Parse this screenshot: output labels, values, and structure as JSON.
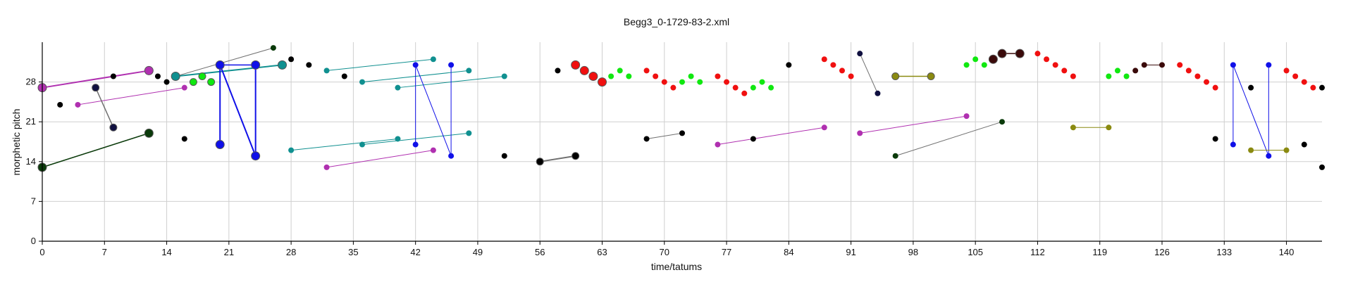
{
  "chart_data": {
    "type": "scatter",
    "title": "Begg3_0-1729-83-2.xml",
    "xlabel": "time/tatums",
    "ylabel": "morphetic pitch",
    "xlim": [
      0,
      144
    ],
    "ylim": [
      0,
      35
    ],
    "xticks": [
      0,
      7,
      14,
      21,
      28,
      35,
      42,
      49,
      56,
      63,
      70,
      77,
      84,
      91,
      98,
      105,
      112,
      119,
      126,
      133,
      140
    ],
    "yticks": [
      0,
      7,
      14,
      21,
      28
    ],
    "grid": true,
    "colors": {
      "black": "#000000",
      "purple": "#b030b0",
      "teal": "#109090",
      "blue": "#1010e8",
      "green": "#10e810",
      "red": "#f01010",
      "olive": "#8a8a10",
      "darkgreen": "#0a3a0a",
      "darkred": "#3a0a0a",
      "navy": "#101040",
      "gray": "#707070"
    },
    "points": [
      {
        "x": 0,
        "y": 27,
        "c": "purple",
        "s": 6
      },
      {
        "x": 2,
        "y": 24,
        "c": "black",
        "s": 4
      },
      {
        "x": 4,
        "y": 24,
        "c": "purple",
        "s": 4
      },
      {
        "x": 6,
        "y": 27,
        "c": "navy",
        "s": 5
      },
      {
        "x": 8,
        "y": 20,
        "c": "navy",
        "s": 5
      },
      {
        "x": 8,
        "y": 29,
        "c": "black",
        "s": 4
      },
      {
        "x": 12,
        "y": 30,
        "c": "purple",
        "s": 6
      },
      {
        "x": 12,
        "y": 19,
        "c": "darkgreen",
        "s": 6
      },
      {
        "x": 0,
        "y": 13,
        "c": "darkgreen",
        "s": 6
      },
      {
        "x": 13,
        "y": 29,
        "c": "black",
        "s": 4
      },
      {
        "x": 14,
        "y": 28,
        "c": "black",
        "s": 4
      },
      {
        "x": 16,
        "y": 27,
        "c": "purple",
        "s": 4
      },
      {
        "x": 16,
        "y": 18,
        "c": "black",
        "s": 4
      },
      {
        "x": 15,
        "y": 29,
        "c": "teal",
        "s": 6
      },
      {
        "x": 17,
        "y": 28,
        "c": "green",
        "s": 5
      },
      {
        "x": 18,
        "y": 29,
        "c": "green",
        "s": 5
      },
      {
        "x": 19,
        "y": 28,
        "c": "green",
        "s": 5
      },
      {
        "x": 20,
        "y": 31,
        "c": "blue",
        "s": 6
      },
      {
        "x": 20,
        "y": 17,
        "c": "blue",
        "s": 6
      },
      {
        "x": 24,
        "y": 31,
        "c": "blue",
        "s": 6
      },
      {
        "x": 24,
        "y": 15,
        "c": "blue",
        "s": 6
      },
      {
        "x": 26,
        "y": 34,
        "c": "darkgreen",
        "s": 4
      },
      {
        "x": 27,
        "y": 31,
        "c": "teal",
        "s": 6
      },
      {
        "x": 28,
        "y": 32,
        "c": "black",
        "s": 4
      },
      {
        "x": 30,
        "y": 31,
        "c": "black",
        "s": 4
      },
      {
        "x": 28,
        "y": 16,
        "c": "teal",
        "s": 4
      },
      {
        "x": 32,
        "y": 30,
        "c": "teal",
        "s": 4
      },
      {
        "x": 32,
        "y": 13,
        "c": "purple",
        "s": 4
      },
      {
        "x": 34,
        "y": 29,
        "c": "black",
        "s": 4
      },
      {
        "x": 36,
        "y": 28,
        "c": "teal",
        "s": 4
      },
      {
        "x": 36,
        "y": 17,
        "c": "teal",
        "s": 4
      },
      {
        "x": 40,
        "y": 27,
        "c": "teal",
        "s": 4
      },
      {
        "x": 40,
        "y": 18,
        "c": "teal",
        "s": 4
      },
      {
        "x": 42,
        "y": 31,
        "c": "blue",
        "s": 4
      },
      {
        "x": 42,
        "y": 17,
        "c": "blue",
        "s": 4
      },
      {
        "x": 44,
        "y": 32,
        "c": "teal",
        "s": 4
      },
      {
        "x": 44,
        "y": 16,
        "c": "purple",
        "s": 4
      },
      {
        "x": 46,
        "y": 31,
        "c": "blue",
        "s": 4
      },
      {
        "x": 46,
        "y": 15,
        "c": "blue",
        "s": 4
      },
      {
        "x": 48,
        "y": 30,
        "c": "teal",
        "s": 4
      },
      {
        "x": 48,
        "y": 19,
        "c": "teal",
        "s": 4
      },
      {
        "x": 52,
        "y": 29,
        "c": "teal",
        "s": 4
      },
      {
        "x": 52,
        "y": 15,
        "c": "black",
        "s": 4
      },
      {
        "x": 56,
        "y": 14,
        "c": "black",
        "s": 5
      },
      {
        "x": 58,
        "y": 30,
        "c": "black",
        "s": 4
      },
      {
        "x": 60,
        "y": 15,
        "c": "black",
        "s": 5
      },
      {
        "x": 60,
        "y": 31,
        "c": "red",
        "s": 6
      },
      {
        "x": 61,
        "y": 30,
        "c": "red",
        "s": 6
      },
      {
        "x": 62,
        "y": 29,
        "c": "red",
        "s": 6
      },
      {
        "x": 63,
        "y": 28,
        "c": "red",
        "s": 6
      },
      {
        "x": 64,
        "y": 29,
        "c": "green",
        "s": 4
      },
      {
        "x": 65,
        "y": 30,
        "c": "green",
        "s": 4
      },
      {
        "x": 66,
        "y": 29,
        "c": "green",
        "s": 4
      },
      {
        "x": 68,
        "y": 30,
        "c": "red",
        "s": 4
      },
      {
        "x": 69,
        "y": 29,
        "c": "red",
        "s": 4
      },
      {
        "x": 70,
        "y": 28,
        "c": "red",
        "s": 4
      },
      {
        "x": 71,
        "y": 27,
        "c": "red",
        "s": 4
      },
      {
        "x": 72,
        "y": 28,
        "c": "green",
        "s": 4
      },
      {
        "x": 73,
        "y": 29,
        "c": "green",
        "s": 4
      },
      {
        "x": 74,
        "y": 28,
        "c": "green",
        "s": 4
      },
      {
        "x": 68,
        "y": 18,
        "c": "black",
        "s": 4
      },
      {
        "x": 72,
        "y": 19,
        "c": "black",
        "s": 4
      },
      {
        "x": 76,
        "y": 29,
        "c": "red",
        "s": 4
      },
      {
        "x": 77,
        "y": 28,
        "c": "red",
        "s": 4
      },
      {
        "x": 78,
        "y": 27,
        "c": "red",
        "s": 4
      },
      {
        "x": 79,
        "y": 26,
        "c": "red",
        "s": 4
      },
      {
        "x": 80,
        "y": 27,
        "c": "green",
        "s": 4
      },
      {
        "x": 81,
        "y": 28,
        "c": "green",
        "s": 4
      },
      {
        "x": 82,
        "y": 27,
        "c": "green",
        "s": 4
      },
      {
        "x": 76,
        "y": 17,
        "c": "purple",
        "s": 4
      },
      {
        "x": 80,
        "y": 18,
        "c": "black",
        "s": 4
      },
      {
        "x": 84,
        "y": 31,
        "c": "black",
        "s": 4
      },
      {
        "x": 88,
        "y": 32,
        "c": "red",
        "s": 4
      },
      {
        "x": 89,
        "y": 31,
        "c": "red",
        "s": 4
      },
      {
        "x": 90,
        "y": 30,
        "c": "red",
        "s": 4
      },
      {
        "x": 91,
        "y": 29,
        "c": "red",
        "s": 4
      },
      {
        "x": 88,
        "y": 20,
        "c": "purple",
        "s": 4
      },
      {
        "x": 92,
        "y": 33,
        "c": "navy",
        "s": 4
      },
      {
        "x": 94,
        "y": 26,
        "c": "navy",
        "s": 4
      },
      {
        "x": 92,
        "y": 19,
        "c": "purple",
        "s": 4
      },
      {
        "x": 96,
        "y": 29,
        "c": "olive",
        "s": 5
      },
      {
        "x": 100,
        "y": 29,
        "c": "olive",
        "s": 5
      },
      {
        "x": 96,
        "y": 15,
        "c": "darkgreen",
        "s": 4
      },
      {
        "x": 104,
        "y": 22,
        "c": "purple",
        "s": 4
      },
      {
        "x": 104,
        "y": 31,
        "c": "green",
        "s": 4
      },
      {
        "x": 105,
        "y": 32,
        "c": "green",
        "s": 4
      },
      {
        "x": 106,
        "y": 31,
        "c": "green",
        "s": 4
      },
      {
        "x": 107,
        "y": 32,
        "c": "darkred",
        "s": 6
      },
      {
        "x": 108,
        "y": 33,
        "c": "darkred",
        "s": 6
      },
      {
        "x": 110,
        "y": 33,
        "c": "darkred",
        "s": 6
      },
      {
        "x": 108,
        "y": 21,
        "c": "darkgreen",
        "s": 4
      },
      {
        "x": 112,
        "y": 33,
        "c": "red",
        "s": 4
      },
      {
        "x": 113,
        "y": 32,
        "c": "red",
        "s": 4
      },
      {
        "x": 114,
        "y": 31,
        "c": "red",
        "s": 4
      },
      {
        "x": 115,
        "y": 30,
        "c": "red",
        "s": 4
      },
      {
        "x": 116,
        "y": 29,
        "c": "red",
        "s": 4
      },
      {
        "x": 116,
        "y": 20,
        "c": "olive",
        "s": 4
      },
      {
        "x": 120,
        "y": 20,
        "c": "olive",
        "s": 4
      },
      {
        "x": 120,
        "y": 29,
        "c": "green",
        "s": 4
      },
      {
        "x": 121,
        "y": 30,
        "c": "green",
        "s": 4
      },
      {
        "x": 122,
        "y": 29,
        "c": "green",
        "s": 4
      },
      {
        "x": 123,
        "y": 30,
        "c": "darkred",
        "s": 4
      },
      {
        "x": 124,
        "y": 31,
        "c": "darkred",
        "s": 4
      },
      {
        "x": 126,
        "y": 31,
        "c": "darkred",
        "s": 4
      },
      {
        "x": 128,
        "y": 31,
        "c": "red",
        "s": 4
      },
      {
        "x": 129,
        "y": 30,
        "c": "red",
        "s": 4
      },
      {
        "x": 130,
        "y": 29,
        "c": "red",
        "s": 4
      },
      {
        "x": 131,
        "y": 28,
        "c": "red",
        "s": 4
      },
      {
        "x": 132,
        "y": 27,
        "c": "red",
        "s": 4
      },
      {
        "x": 132,
        "y": 18,
        "c": "black",
        "s": 4
      },
      {
        "x": 134,
        "y": 31,
        "c": "blue",
        "s": 4
      },
      {
        "x": 134,
        "y": 17,
        "c": "blue",
        "s": 4
      },
      {
        "x": 136,
        "y": 27,
        "c": "black",
        "s": 4
      },
      {
        "x": 136,
        "y": 16,
        "c": "olive",
        "s": 4
      },
      {
        "x": 138,
        "y": 31,
        "c": "blue",
        "s": 4
      },
      {
        "x": 138,
        "y": 15,
        "c": "blue",
        "s": 4
      },
      {
        "x": 140,
        "y": 16,
        "c": "olive",
        "s": 4
      },
      {
        "x": 140,
        "y": 30,
        "c": "red",
        "s": 4
      },
      {
        "x": 141,
        "y": 29,
        "c": "red",
        "s": 4
      },
      {
        "x": 142,
        "y": 28,
        "c": "red",
        "s": 4
      },
      {
        "x": 143,
        "y": 27,
        "c": "red",
        "s": 4
      },
      {
        "x": 142,
        "y": 17,
        "c": "black",
        "s": 4
      },
      {
        "x": 144,
        "y": 27,
        "c": "black",
        "s": 4
      },
      {
        "x": 144,
        "y": 13,
        "c": "black",
        "s": 4
      }
    ],
    "lines": [
      {
        "x1": 0,
        "y1": 27,
        "x2": 12,
        "y2": 30,
        "c": "purple",
        "w": 2
      },
      {
        "x1": 4,
        "y1": 24,
        "x2": 16,
        "y2": 27,
        "c": "purple",
        "w": 1
      },
      {
        "x1": 6,
        "y1": 27,
        "x2": 8,
        "y2": 20,
        "c": "gray",
        "w": 1.5
      },
      {
        "x1": 0,
        "y1": 13,
        "x2": 12,
        "y2": 19,
        "c": "darkgreen",
        "w": 1.5
      },
      {
        "x1": 15,
        "y1": 29,
        "x2": 27,
        "y2": 31,
        "c": "teal",
        "w": 2
      },
      {
        "x1": 15,
        "y1": 29,
        "x2": 26,
        "y2": 34,
        "c": "gray",
        "w": 1
      },
      {
        "x1": 20,
        "y1": 31,
        "x2": 20,
        "y2": 17,
        "c": "blue",
        "w": 2
      },
      {
        "x1": 20,
        "y1": 31,
        "x2": 24,
        "y2": 15,
        "c": "blue",
        "w": 2
      },
      {
        "x1": 24,
        "y1": 31,
        "x2": 24,
        "y2": 15,
        "c": "blue",
        "w": 2
      },
      {
        "x1": 20,
        "y1": 31,
        "x2": 24,
        "y2": 31,
        "c": "blue",
        "w": 1.5
      },
      {
        "x1": 32,
        "y1": 30,
        "x2": 44,
        "y2": 32,
        "c": "teal",
        "w": 1
      },
      {
        "x1": 36,
        "y1": 28,
        "x2": 48,
        "y2": 30,
        "c": "teal",
        "w": 1
      },
      {
        "x1": 40,
        "y1": 27,
        "x2": 52,
        "y2": 29,
        "c": "teal",
        "w": 1
      },
      {
        "x1": 28,
        "y1": 16,
        "x2": 40,
        "y2": 18,
        "c": "teal",
        "w": 1
      },
      {
        "x1": 36,
        "y1": 17,
        "x2": 48,
        "y2": 19,
        "c": "teal",
        "w": 1
      },
      {
        "x1": 32,
        "y1": 13,
        "x2": 44,
        "y2": 16,
        "c": "purple",
        "w": 1
      },
      {
        "x1": 42,
        "y1": 31,
        "x2": 42,
        "y2": 17,
        "c": "blue",
        "w": 1
      },
      {
        "x1": 42,
        "y1": 31,
        "x2": 46,
        "y2": 15,
        "c": "blue",
        "w": 1
      },
      {
        "x1": 46,
        "y1": 31,
        "x2": 46,
        "y2": 15,
        "c": "blue",
        "w": 1
      },
      {
        "x1": 56,
        "y1": 14,
        "x2": 60,
        "y2": 15,
        "c": "gray",
        "w": 2
      },
      {
        "x1": 68,
        "y1": 18,
        "x2": 72,
        "y2": 19,
        "c": "gray",
        "w": 1
      },
      {
        "x1": 76,
        "y1": 17,
        "x2": 88,
        "y2": 20,
        "c": "purple",
        "w": 1
      },
      {
        "x1": 92,
        "y1": 33,
        "x2": 94,
        "y2": 26,
        "c": "gray",
        "w": 1
      },
      {
        "x1": 92,
        "y1": 19,
        "x2": 104,
        "y2": 22,
        "c": "purple",
        "w": 1
      },
      {
        "x1": 96,
        "y1": 29,
        "x2": 100,
        "y2": 29,
        "c": "olive",
        "w": 1.5
      },
      {
        "x1": 96,
        "y1": 15,
        "x2": 108,
        "y2": 21,
        "c": "gray",
        "w": 1
      },
      {
        "x1": 108,
        "y1": 33,
        "x2": 110,
        "y2": 33,
        "c": "darkred",
        "w": 1.5
      },
      {
        "x1": 116,
        "y1": 20,
        "x2": 120,
        "y2": 20,
        "c": "olive",
        "w": 1
      },
      {
        "x1": 124,
        "y1": 31,
        "x2": 126,
        "y2": 31,
        "c": "darkred",
        "w": 1
      },
      {
        "x1": 134,
        "y1": 31,
        "x2": 134,
        "y2": 17,
        "c": "blue",
        "w": 1
      },
      {
        "x1": 134,
        "y1": 31,
        "x2": 138,
        "y2": 15,
        "c": "blue",
        "w": 1
      },
      {
        "x1": 138,
        "y1": 31,
        "x2": 138,
        "y2": 15,
        "c": "blue",
        "w": 1
      },
      {
        "x1": 136,
        "y1": 16,
        "x2": 140,
        "y2": 16,
        "c": "olive",
        "w": 1
      }
    ]
  }
}
